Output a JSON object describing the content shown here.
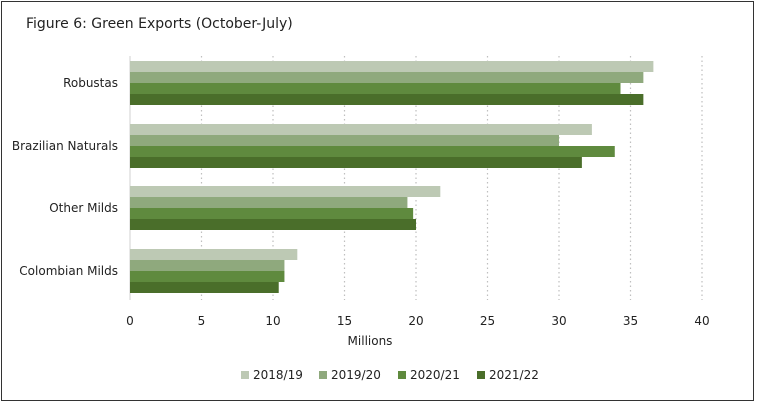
{
  "chart_data": {
    "type": "bar",
    "orientation": "horizontal",
    "title": "Figure 6: Green Exports (October-July)",
    "xlabel": "Millions",
    "ylabel": "",
    "xlim": [
      0,
      40
    ],
    "xticks": [
      "0",
      "5",
      "10",
      "15",
      "20",
      "25",
      "30",
      "35",
      "40"
    ],
    "grid": "vertical-dotted",
    "legend_position": "bottom",
    "categories": [
      "Robustas",
      "Brazilian Naturals",
      "Other Milds",
      "Colombian Milds"
    ],
    "series": [
      {
        "name": "2018/19",
        "color": "#bdc9b4",
        "values": [
          36.6,
          32.3,
          21.7,
          11.7
        ]
      },
      {
        "name": "2019/20",
        "color": "#8fa97d",
        "values": [
          35.9,
          30.0,
          19.4,
          10.8
        ]
      },
      {
        "name": "2020/21",
        "color": "#5f8a3e",
        "values": [
          34.3,
          33.9,
          19.8,
          10.8
        ]
      },
      {
        "name": "2021/22",
        "color": "#4a6e2a",
        "values": [
          35.9,
          31.6,
          20.0,
          10.4
        ]
      }
    ]
  }
}
